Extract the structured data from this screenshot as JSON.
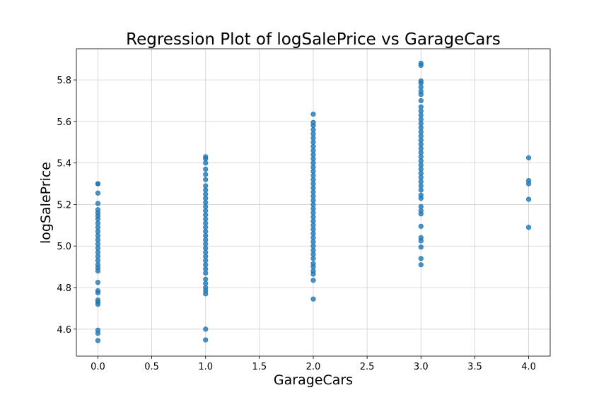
{
  "chart_data": {
    "type": "scatter",
    "title": "Regression Plot of logSalePrice vs GarageCars",
    "xlabel": "GarageCars",
    "ylabel": "logSalePrice",
    "xlim": [
      -0.2,
      4.2
    ],
    "ylim": [
      4.47,
      5.95
    ],
    "xticks": [
      0.0,
      0.5,
      1.0,
      1.5,
      2.0,
      2.5,
      3.0,
      3.5,
      4.0
    ],
    "xtick_labels": [
      "0.0",
      "0.5",
      "1.0",
      "1.5",
      "2.0",
      "2.5",
      "3.0",
      "3.5",
      "4.0"
    ],
    "yticks": [
      4.6,
      4.8,
      5.0,
      5.2,
      5.4,
      5.6,
      5.8
    ],
    "ytick_labels": [
      "4.6",
      "4.8",
      "5.0",
      "5.2",
      "5.4",
      "5.6",
      "5.8"
    ],
    "grid": true,
    "marker_color": "#1f77b4",
    "series": [
      {
        "x": 0,
        "y": [
          4.545,
          4.58,
          4.595,
          4.72,
          4.73,
          4.74,
          4.775,
          4.785,
          4.825,
          4.88,
          4.895,
          4.91,
          4.93,
          4.95,
          4.97,
          4.99,
          5.01,
          5.03,
          5.05,
          5.07,
          5.09,
          5.11,
          5.13,
          5.145,
          5.16,
          5.175,
          5.205,
          5.255,
          5.3,
          5.3
        ]
      },
      {
        "x": 1,
        "y": [
          4.548,
          4.6,
          4.77,
          4.785,
          4.8,
          4.82,
          4.84,
          4.87,
          4.89,
          4.91,
          4.93,
          4.95,
          4.97,
          4.99,
          5.01,
          5.03,
          5.05,
          5.07,
          5.09,
          5.11,
          5.13,
          5.15,
          5.17,
          5.19,
          5.21,
          5.23,
          5.25,
          5.27,
          5.29,
          5.32,
          5.345,
          5.37,
          5.4,
          5.42,
          5.43
        ]
      },
      {
        "x": 2,
        "y": [
          4.745,
          4.835,
          4.865,
          4.88,
          4.9,
          4.915,
          4.94,
          4.96,
          4.98,
          5.0,
          5.02,
          5.04,
          5.06,
          5.08,
          5.1,
          5.12,
          5.14,
          5.16,
          5.18,
          5.2,
          5.22,
          5.24,
          5.26,
          5.28,
          5.3,
          5.32,
          5.34,
          5.36,
          5.38,
          5.4,
          5.42,
          5.44,
          5.46,
          5.48,
          5.5,
          5.52,
          5.54,
          5.56,
          5.58,
          5.595,
          5.635
        ]
      },
      {
        "x": 3,
        "y": [
          4.91,
          4.94,
          4.995,
          5.025,
          5.04,
          5.095,
          5.155,
          5.17,
          5.19,
          5.23,
          5.245,
          5.27,
          5.29,
          5.31,
          5.33,
          5.35,
          5.37,
          5.39,
          5.41,
          5.43,
          5.45,
          5.47,
          5.49,
          5.51,
          5.53,
          5.55,
          5.57,
          5.59,
          5.61,
          5.63,
          5.65,
          5.67,
          5.7,
          5.73,
          5.745,
          5.765,
          5.785,
          5.795,
          5.87,
          5.88
        ]
      },
      {
        "x": 4,
        "y": [
          5.09,
          5.225,
          5.3,
          5.315,
          5.425
        ]
      }
    ]
  }
}
